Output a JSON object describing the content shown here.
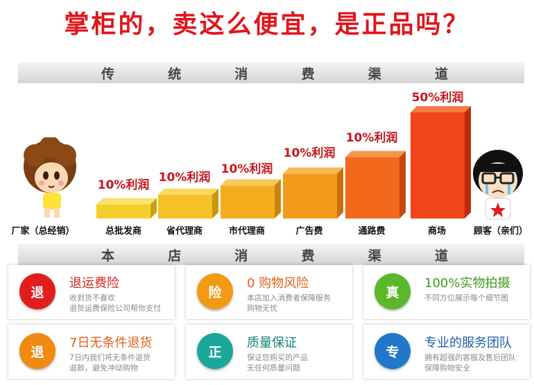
{
  "headline": "掌柜的，卖这么便宜，是正品吗？",
  "traditional_header": [
    "传",
    "统",
    "消",
    "费",
    "渠",
    "道"
  ],
  "store_header": [
    "本",
    "店",
    "消",
    "费",
    "渠",
    "道"
  ],
  "chain": {
    "start_label": "厂家（总经销）",
    "end_label": "顾客（亲们）",
    "steps": [
      {
        "label": "总批发商",
        "profit": "10%利润",
        "level": 0.12
      },
      {
        "label": "省代理商",
        "profit": "10%利润",
        "level": 0.2
      },
      {
        "label": "市代理商",
        "profit": "10%利润",
        "level": 0.28
      },
      {
        "label": "广告费",
        "profit": "10%利润",
        "level": 0.38
      },
      {
        "label": "通路费",
        "profit": "10%利润",
        "level": 0.52
      },
      {
        "label": "商场",
        "profit": "50%利润",
        "level": 0.9
      }
    ]
  },
  "services": [
    {
      "badge": "退",
      "title": "退运费险",
      "desc": "收到货不喜欢\n退货运费保险公司帮你支付",
      "color": "#e11d1d",
      "title_color": "#d42a1c"
    },
    {
      "badge": "险",
      "title": "0 购物风险",
      "desc": "本店加入消费者保障服务\n购物无忧",
      "color": "#f29a14",
      "title_color": "#e2601a"
    },
    {
      "badge": "真",
      "title": "100%实物拍摄",
      "desc": "不同方位展示每个细节图",
      "color": "#5cb82a",
      "title_color": "#3d9a1a"
    },
    {
      "badge": "退",
      "title": "7日无条件退货",
      "desc": "7日内我们将无条件退货\n退款，避免冲动购物",
      "color": "#f08a12",
      "title_color": "#e2601a"
    },
    {
      "badge": "正",
      "title": "质量保证",
      "desc": "保证您购买的产品\n无任何质量问题",
      "color": "#1aa89a",
      "title_color": "#13857a"
    },
    {
      "badge": "专",
      "title": "专业的服务团队",
      "desc": "拥有超强的客服及售后团队\n保障购物安全",
      "color": "#1f78c9",
      "title_color": "#1a5fae"
    }
  ]
}
